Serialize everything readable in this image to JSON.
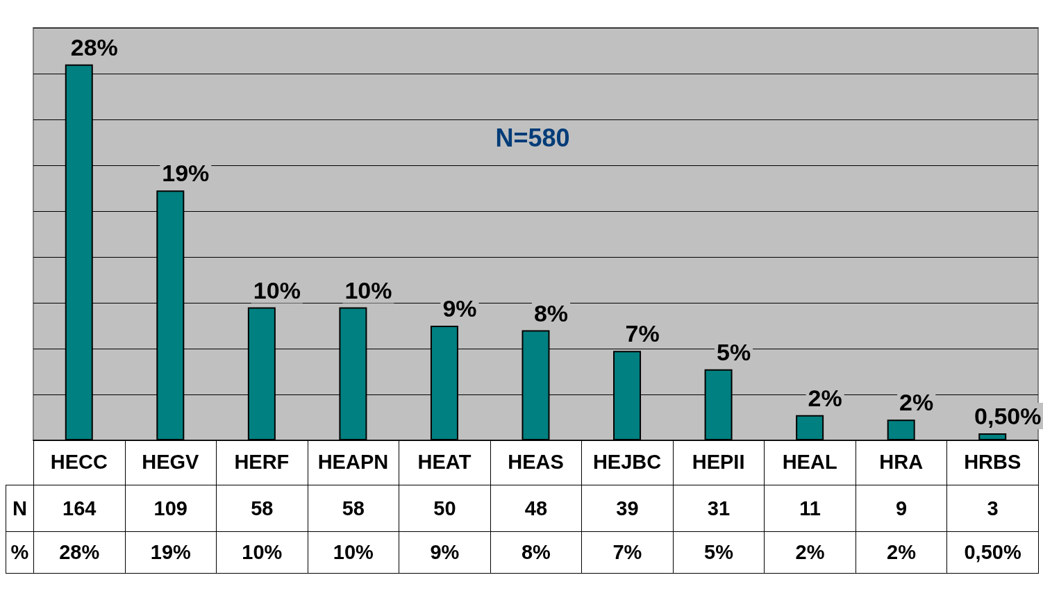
{
  "chart_data": {
    "type": "bar",
    "categories": [
      "HECC",
      "HEGV",
      "HERF",
      "HEAPN",
      "HEAT",
      "HEAS",
      "HEJBC",
      "HEPII",
      "HEAL",
      "HRA",
      "HRBS"
    ],
    "series": [
      {
        "name": "N",
        "color": "#008080",
        "values": [
          164,
          109,
          58,
          58,
          50,
          48,
          39,
          31,
          11,
          9,
          3
        ]
      }
    ],
    "grid": "y",
    "tick_labels": "x",
    "data_labels": true,
    "annotations": [
      "N=580",
      "%",
      {
        "text": "28%",
        "x": "HECC",
        "y": 164
      },
      {
        "text": "19%",
        "x": "HEGV",
        "y": 109
      },
      {
        "text": "10%",
        "x": "HERF",
        "y": 58
      },
      {
        "text": "10%",
        "x": "HEAPN",
        "y": 58
      },
      {
        "text": "9%",
        "x": "HEAT",
        "y": 50
      },
      {
        "text": "8%",
        "x": "HEAS",
        "y": 48
      },
      {
        "text": "7%",
        "x": "HEJBC",
        "y": 39
      },
      {
        "text": "5%",
        "x": "HEPII",
        "y": 31
      },
      {
        "text": "2%",
        "x": "HEAL",
        "y": 11
      },
      {
        "text": "2%",
        "x": "HRA",
        "y": 9
      },
      {
        "text": "0,50%",
        "x": "HRBS",
        "y": 3
      }
    ]
  }
}
